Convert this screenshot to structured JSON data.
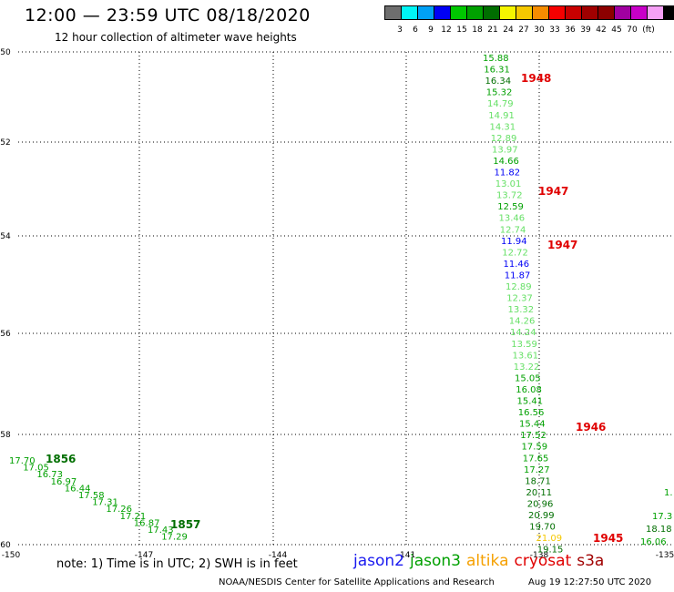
{
  "title": "12:00 — 23:59 UTC 08/18/2020",
  "subtitle": "12 hour collection of altimeter wave heights",
  "scale": {
    "colors": [
      "#6e6e6e",
      "#00f5f5",
      "#00a0f5",
      "#0000f5",
      "#00c800",
      "#00a000",
      "#006e00",
      "#f5f500",
      "#f5c800",
      "#f58c00",
      "#f50000",
      "#c80000",
      "#a00000",
      "#8c0000",
      "#a000a0",
      "#c800c8",
      "#f5a0f5",
      "#000000"
    ],
    "labels": [
      "3",
      "6",
      "9",
      "12",
      "15",
      "18",
      "21",
      "24",
      "27",
      "30",
      "33",
      "36",
      "39",
      "42",
      "45",
      "70",
      "(ft)"
    ]
  },
  "axes": {
    "lon_labels": [
      "-150",
      "-147",
      "-144",
      "-141",
      "-138",
      "-135"
    ],
    "lat_labels": [
      "-50",
      "-52",
      "-54",
      "-56",
      "-58",
      "-60"
    ]
  },
  "tracks": [
    {
      "values": [
        "15.88",
        "16.31",
        "16.34",
        "15.32",
        "14.79",
        "14.91",
        "14.31",
        "12.89",
        "13.97",
        "14.66",
        "11.82",
        "13.01",
        "13.72",
        "12.59",
        "13.46",
        "12.74",
        "11.94",
        "12.72",
        "11.46",
        "11.87",
        "12.89",
        "12.37",
        "13.32",
        "14.26",
        "14.24",
        "13.59",
        "13.61",
        "13.22",
        "15.05",
        "16.08",
        "15.41",
        "16.56",
        "15.44",
        "17.52",
        "17.59",
        "17.65",
        "17.27",
        "18.71",
        "20.11",
        "20.96",
        "20.99",
        "19.70",
        "21.09",
        "19.15"
      ],
      "colors": [
        "#00a000",
        "#00a000",
        "#006e00",
        "#00a000",
        "#66e066",
        "#66e066",
        "#66e066",
        "#66e066",
        "#66e066",
        "#00a000",
        "#0000f5",
        "#66e066",
        "#66e066",
        "#00a000",
        "#66e066",
        "#66e066",
        "#0000f5",
        "#66e066",
        "#0000f5",
        "#0000f5",
        "#66e066",
        "#66e066",
        "#66e066",
        "#66e066",
        "#66e066",
        "#66e066",
        "#66e066",
        "#66e066",
        "#00a000",
        "#00a000",
        "#00a000",
        "#00a000",
        "#00a000",
        "#00a000",
        "#00a000",
        "#00a000",
        "#00a000",
        "#006e00",
        "#006e00",
        "#006e00",
        "#006e00",
        "#006e00",
        "#f5c800",
        "#006e00"
      ]
    },
    {
      "values": [
        "17.70",
        "17.05",
        "16.73",
        "16.97",
        "16.44",
        "17.58",
        "17.31",
        "17.26",
        "17.21",
        "16.87",
        "17.43",
        "17.29"
      ],
      "colors": [
        "#00a000",
        "#00a000",
        "#00a000",
        "#00a000",
        "#00a000",
        "#00a000",
        "#00a000",
        "#00a000",
        "#00a000",
        "#00a000",
        "#00a000",
        "#00a000"
      ]
    },
    {
      "values": [
        "1.",
        "17.3",
        "18.18",
        "16.06"
      ],
      "colors": [
        "#00a000",
        "#00a000",
        "#006e00",
        "#00a000"
      ]
    }
  ],
  "time_labels": [
    {
      "text": "1948",
      "color": "#e00000"
    },
    {
      "text": "1947",
      "color": "#e00000"
    },
    {
      "text": "1947",
      "color": "#e00000"
    },
    {
      "text": "1946",
      "color": "#e00000"
    },
    {
      "text": "1945",
      "color": "#e00000"
    },
    {
      "text": "1856",
      "color": "#006e00"
    },
    {
      "text": "1857",
      "color": "#006e00"
    }
  ],
  "note": "note: 1) Time is in UTC; 2) SWH is in feet",
  "satellites": [
    {
      "name": "jason2",
      "color": "#1a1af0"
    },
    {
      "name": "jason3",
      "color": "#00a000"
    },
    {
      "name": "altika",
      "color": "#f5a000"
    },
    {
      "name": "cryosat",
      "color": "#e00000"
    },
    {
      "name": "s3a",
      "color": "#a00000"
    }
  ],
  "credit": "NOAA/NESDIS Center for Satellite Applications and Research",
  "timestamp": "Aug 19 12:27:50 UTC 2020"
}
